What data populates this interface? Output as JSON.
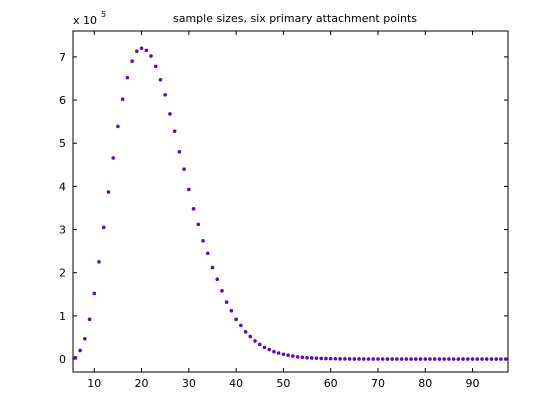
{
  "chart_data": {
    "type": "scatter",
    "title": "sample sizes, six primary attachment points",
    "xlabel": "",
    "ylabel": "",
    "exponent_label": {
      "base": "x 10",
      "exponent": "5"
    },
    "xlim": [
      5.5,
      97.5
    ],
    "ylim": [
      -0.3,
      7.6
    ],
    "grid": false,
    "x_ticks": [
      10,
      20,
      30,
      40,
      50,
      60,
      70,
      80,
      90
    ],
    "y_ticks": [
      0,
      1,
      2,
      3,
      4,
      5,
      6,
      7
    ],
    "marker_color": "#6600cc",
    "series": [
      {
        "x": [
          6,
          7,
          8,
          9,
          10,
          11,
          12,
          13,
          14,
          15,
          16,
          17,
          18,
          19,
          20,
          21,
          22,
          23,
          24,
          25,
          26,
          27,
          28,
          29,
          30,
          31,
          32,
          33,
          34,
          35,
          36,
          37,
          38,
          39,
          40,
          41,
          42,
          43,
          44,
          45,
          46,
          47,
          48,
          49,
          50,
          51,
          52,
          53,
          54,
          55,
          56,
          57,
          58,
          59,
          60,
          61,
          62,
          63,
          64,
          65,
          66,
          67,
          68,
          69,
          70,
          71,
          72,
          73,
          74,
          75,
          76,
          77,
          78,
          79,
          80,
          81,
          82,
          83,
          84,
          85,
          86,
          87,
          88,
          89,
          90,
          91,
          92,
          93,
          94,
          95,
          96,
          97
        ],
        "y": [
          0.03,
          0.2,
          0.47,
          0.92,
          1.52,
          2.25,
          3.05,
          3.87,
          4.66,
          5.39,
          6.02,
          6.52,
          6.9,
          7.13,
          7.2,
          7.15,
          7.02,
          6.78,
          6.47,
          6.12,
          5.68,
          5.28,
          4.8,
          4.4,
          3.93,
          3.48,
          3.12,
          2.74,
          2.45,
          2.12,
          1.85,
          1.58,
          1.32,
          1.12,
          0.92,
          0.78,
          0.63,
          0.52,
          0.42,
          0.34,
          0.27,
          0.22,
          0.17,
          0.14,
          0.11,
          0.09,
          0.07,
          0.05,
          0.04,
          0.03,
          0.025,
          0.02,
          0.015,
          0.012,
          0.009,
          0.007,
          0.005,
          0.004,
          0.003,
          0.002,
          0.002,
          0.001,
          0.001,
          0.001,
          0.001,
          0,
          0,
          0,
          0,
          0,
          0,
          0,
          0,
          0,
          0,
          0,
          0,
          0,
          0,
          0,
          0,
          0,
          0,
          0,
          0,
          0,
          0,
          0,
          0,
          0,
          0,
          0
        ]
      }
    ]
  }
}
